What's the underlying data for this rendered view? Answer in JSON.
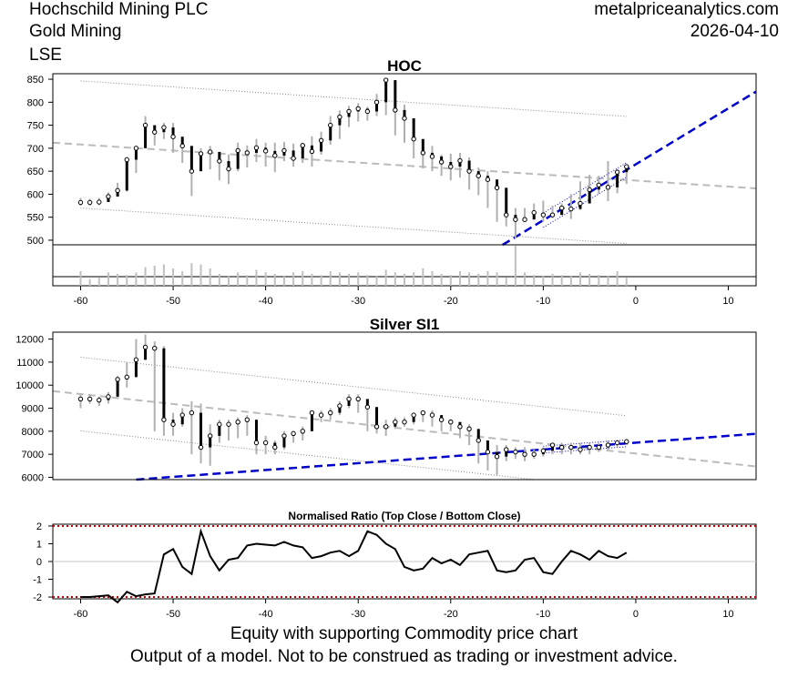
{
  "header": {
    "company": "Hochschild Mining PLC",
    "sector": "Gold Mining",
    "exchange": "LSE",
    "site": "metalpriceanalytics.com",
    "date": "2026-04-10"
  },
  "footer": {
    "line1": "Equity with supporting Commodity price chart",
    "line2": "Output of a model. Not to be construed as trading or investment advice."
  },
  "colors": {
    "trend": "#0000cc",
    "regression": "#bbbbbb",
    "band": "#888888",
    "candle": "#000000",
    "wick": "#b0b0b0",
    "limit": "#cc0000"
  },
  "chart_data": [
    {
      "type": "candlestick",
      "title": "HOC",
      "xlim": [
        -63,
        13
      ],
      "ylim": [
        490,
        862
      ],
      "yticks": [
        500,
        550,
        600,
        650,
        700,
        750,
        800,
        850
      ],
      "xticks": [
        -60,
        -50,
        -40,
        -30,
        -20,
        -10,
        0,
        10
      ],
      "x": [
        -60,
        -59,
        -58,
        -57,
        -56,
        -55,
        -54,
        -53,
        -52,
        -51,
        -50,
        -49,
        -48,
        -47,
        -46,
        -45,
        -44,
        -43,
        -42,
        -41,
        -40,
        -39,
        -38,
        -37,
        -36,
        -35,
        -34,
        -33,
        -32,
        -31,
        -30,
        -29,
        -28,
        -27,
        -26,
        -25,
        -24,
        -23,
        -22,
        -21,
        -20,
        -19,
        -18,
        -17,
        -16,
        -15,
        -14,
        -13,
        -12,
        -11,
        -10,
        -9,
        -8,
        -7,
        -6,
        -5,
        -4,
        -3,
        -2,
        -1
      ],
      "close": [
        582,
        582,
        583,
        595,
        608,
        675,
        700,
        750,
        735,
        745,
        725,
        705,
        650,
        688,
        692,
        672,
        655,
        695,
        690,
        701,
        694,
        684,
        695,
        678,
        706,
        693,
        717,
        750,
        768,
        780,
        786,
        780,
        800,
        848,
        783,
        765,
        720,
        690,
        682,
        670,
        660,
        673,
        650,
        640,
        632,
        614,
        555,
        545,
        545,
        560,
        555,
        555,
        570,
        568,
        580,
        610,
        620,
        615,
        648,
        660
      ],
      "low": [
        575,
        575,
        576,
        585,
        596,
        606,
        646,
        710,
        706,
        720,
        690,
        668,
        596,
        650,
        654,
        630,
        622,
        650,
        658,
        670,
        660,
        648,
        672,
        660,
        668,
        660,
        686,
        708,
        720,
        746,
        758,
        760,
        770,
        772,
        728,
        712,
        678,
        656,
        650,
        640,
        630,
        636,
        610,
        598,
        570,
        540,
        530,
        503,
        540,
        546,
        540,
        548,
        556,
        546,
        566,
        580,
        600,
        585,
        602,
        622
      ],
      "high": [
        592,
        590,
        592,
        604,
        625,
        680,
        702,
        770,
        750,
        755,
        755,
        715,
        700,
        700,
        705,
        680,
        686,
        712,
        706,
        720,
        712,
        712,
        714,
        710,
        712,
        726,
        736,
        770,
        782,
        792,
        798,
        790,
        818,
        852,
        815,
        795,
        758,
        712,
        705,
        686,
        688,
        690,
        680,
        658,
        650,
        622,
        576,
        570,
        570,
        580,
        586,
        575,
        580,
        600,
        628,
        642,
        640,
        672,
        655,
        664
      ],
      "volume": [
        0.55,
        0.25,
        0.3,
        0.5,
        0.45,
        0.4,
        0.5,
        0.7,
        0.75,
        0.8,
        0.65,
        0.55,
        0.85,
        0.8,
        0.65,
        0.45,
        0.35,
        0.5,
        0.4,
        0.6,
        0.5,
        0.45,
        0.35,
        0.5,
        0.55,
        0.45,
        0.4,
        0.55,
        0.5,
        0.45,
        0.5,
        0.4,
        0.35,
        0.6,
        0.5,
        0.45,
        0.5,
        0.65,
        0.55,
        0.45,
        0.4,
        0.55,
        0.5,
        0.45,
        0.55,
        0.5,
        0.3,
        1.5,
        0.5,
        0.4,
        0.35,
        0.45,
        0.4,
        0.35,
        0.5,
        0.45,
        0.4,
        0.35,
        0.55,
        0.3
      ]
    },
    {
      "type": "candlestick",
      "title": "Silver SI1",
      "xlim": [
        -63,
        13
      ],
      "ylim": [
        5900,
        12300
      ],
      "yticks": [
        6000,
        7000,
        8000,
        9000,
        10000,
        11000,
        12000
      ],
      "xticks": [
        -60,
        -50,
        -40,
        -30,
        -20,
        -10,
        0,
        10
      ],
      "x": [
        -60,
        -59,
        -58,
        -57,
        -56,
        -55,
        -54,
        -53,
        -52,
        -51,
        -50,
        -49,
        -48,
        -47,
        -46,
        -45,
        -44,
        -43,
        -42,
        -41,
        -40,
        -39,
        -38,
        -37,
        -36,
        -35,
        -34,
        -33,
        -32,
        -31,
        -30,
        -29,
        -28,
        -27,
        -26,
        -25,
        -24,
        -23,
        -22,
        -21,
        -20,
        -19,
        -18,
        -17,
        -16,
        -15,
        -14,
        -13,
        -12,
        -11,
        -10,
        -9,
        -8,
        -7,
        -6,
        -5,
        -4,
        -3,
        -2,
        -1
      ],
      "close": [
        9400,
        9400,
        9350,
        9500,
        10250,
        10350,
        11100,
        11650,
        11600,
        8500,
        8300,
        8700,
        8800,
        7300,
        7800,
        8300,
        8300,
        8400,
        8500,
        7500,
        7500,
        7300,
        7800,
        7900,
        8000,
        8800,
        8700,
        8800,
        9100,
        9400,
        9400,
        9050,
        8200,
        8200,
        8400,
        8400,
        8700,
        8800,
        8700,
        8500,
        8400,
        8200,
        8100,
        7600,
        7100,
        6900,
        7200,
        7100,
        7000,
        7000,
        7150,
        7400,
        7300,
        7300,
        7200,
        7300,
        7300,
        7400,
        7500,
        7550
      ],
      "low": [
        9000,
        9200,
        9100,
        9200,
        9800,
        9900,
        10600,
        11300,
        8000,
        7800,
        7800,
        8200,
        7000,
        6600,
        6500,
        7500,
        7600,
        7700,
        7800,
        7000,
        7000,
        7000,
        7200,
        7500,
        7600,
        8300,
        8400,
        8500,
        8700,
        9000,
        8800,
        8000,
        7900,
        7800,
        8100,
        8200,
        8300,
        8400,
        8200,
        8000,
        8000,
        7700,
        7400,
        6600,
        6300,
        6100,
        6700,
        6800,
        6700,
        6800,
        6900,
        7000,
        7000,
        7000,
        7000,
        7000,
        7100,
        7200,
        7300,
        7400
      ],
      "high": [
        9600,
        9600,
        9500,
        9700,
        10400,
        11000,
        12000,
        12200,
        11900,
        11700,
        8800,
        9000,
        9300,
        9200,
        8300,
        8500,
        8500,
        8600,
        8700,
        8000,
        7800,
        7600,
        8000,
        8000,
        8200,
        8900,
        8900,
        9000,
        9300,
        9600,
        9600,
        9300,
        8500,
        8500,
        8600,
        8600,
        8800,
        8900,
        8900,
        8600,
        8500,
        8400,
        8300,
        7700,
        7400,
        7400,
        7400,
        7300,
        7300,
        7200,
        7300,
        7500,
        7500,
        7500,
        7500,
        7500,
        7500,
        7600,
        7600,
        7650
      ]
    },
    {
      "type": "line",
      "title": "Normalised Ratio (Top Close / Bottom Close)",
      "xlim": [
        -63,
        13
      ],
      "ylim": [
        -2.1,
        2.1
      ],
      "yticks": [
        -2,
        -1,
        0,
        1,
        2
      ],
      "xticks": [
        -60,
        -50,
        -40,
        -30,
        -20,
        -10,
        0,
        10
      ],
      "limits": [
        2,
        -2
      ],
      "x": [
        -60,
        -59,
        -58,
        -57,
        -56,
        -55,
        -54,
        -53,
        -52,
        -51,
        -50,
        -49,
        -48,
        -47,
        -46,
        -45,
        -44,
        -43,
        -42,
        -41,
        -40,
        -39,
        -38,
        -37,
        -36,
        -35,
        -34,
        -33,
        -32,
        -31,
        -30,
        -29,
        -28,
        -27,
        -26,
        -25,
        -24,
        -23,
        -22,
        -21,
        -20,
        -19,
        -18,
        -17,
        -16,
        -15,
        -14,
        -13,
        -12,
        -11,
        -10,
        -9,
        -8,
        -7,
        -6,
        -5,
        -4,
        -3,
        -2,
        -1
      ],
      "values": [
        -2.0,
        -2.0,
        -1.95,
        -1.9,
        -2.3,
        -1.7,
        -1.95,
        -1.85,
        -1.8,
        0.4,
        0.7,
        -0.3,
        -0.7,
        1.7,
        0.3,
        -0.5,
        0.1,
        0.2,
        0.9,
        1.0,
        0.95,
        0.9,
        1.1,
        0.9,
        0.8,
        0.2,
        0.3,
        0.5,
        0.6,
        0.3,
        0.6,
        1.7,
        1.5,
        1.0,
        0.7,
        -0.3,
        -0.5,
        -0.4,
        0.2,
        -0.1,
        0.1,
        -0.2,
        0.4,
        0.5,
        0.6,
        -0.5,
        -0.6,
        -0.5,
        0.1,
        0.2,
        -0.6,
        -0.7,
        0.0,
        0.6,
        0.4,
        0.1,
        0.6,
        0.3,
        0.2,
        0.5
      ]
    }
  ]
}
